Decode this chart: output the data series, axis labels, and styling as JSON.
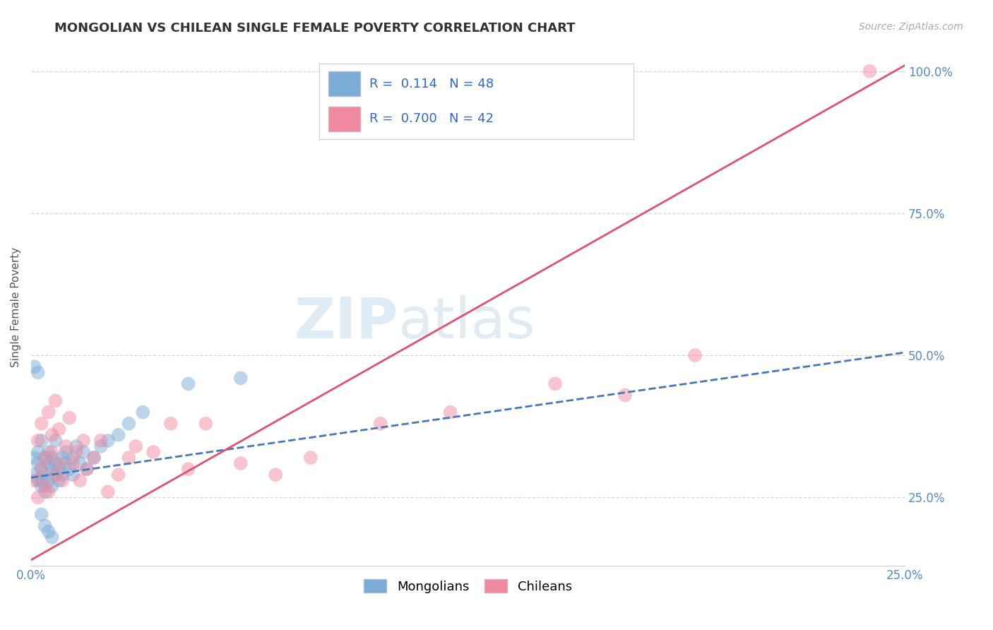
{
  "title": "MONGOLIAN VS CHILEAN SINGLE FEMALE POVERTY CORRELATION CHART",
  "source": "Source: ZipAtlas.com",
  "ylabel": "Single Female Poverty",
  "xlim": [
    0.0,
    0.25
  ],
  "ylim": [
    0.13,
    1.04
  ],
  "xtick_positions": [
    0.0,
    0.05,
    0.1,
    0.15,
    0.2,
    0.25
  ],
  "xtick_labels": [
    "0.0%",
    "",
    "",
    "",
    "",
    "25.0%"
  ],
  "ytick_positions": [
    0.25,
    0.5,
    0.75,
    1.0
  ],
  "ytick_labels": [
    "25.0%",
    "50.0%",
    "75.0%",
    "100.0%"
  ],
  "mongolian_R": 0.114,
  "mongolian_N": 48,
  "chilean_R": 0.7,
  "chilean_N": 42,
  "mongolian_color": "#7aacd6",
  "chilean_color": "#f08aa0",
  "mongolian_line_color": "#4477bb",
  "chilean_line_color": "#e05070",
  "watermark_zip": "ZIP",
  "watermark_atlas": "atlas",
  "legend_mongolians": "Mongolians",
  "legend_chileans": "Chileans",
  "mongolian_x": [
    0.001,
    0.001,
    0.002,
    0.002,
    0.002,
    0.003,
    0.003,
    0.003,
    0.003,
    0.004,
    0.004,
    0.004,
    0.005,
    0.005,
    0.005,
    0.006,
    0.006,
    0.006,
    0.007,
    0.007,
    0.007,
    0.008,
    0.008,
    0.009,
    0.009,
    0.01,
    0.01,
    0.011,
    0.012,
    0.012,
    0.013,
    0.014,
    0.015,
    0.016,
    0.018,
    0.02,
    0.022,
    0.025,
    0.028,
    0.032,
    0.001,
    0.002,
    0.003,
    0.004,
    0.005,
    0.006,
    0.045,
    0.06
  ],
  "mongolian_y": [
    0.32,
    0.29,
    0.31,
    0.28,
    0.33,
    0.3,
    0.28,
    0.35,
    0.27,
    0.32,
    0.29,
    0.26,
    0.31,
    0.28,
    0.33,
    0.3,
    0.27,
    0.32,
    0.29,
    0.31,
    0.35,
    0.28,
    0.3,
    0.29,
    0.32,
    0.31,
    0.33,
    0.3,
    0.29,
    0.32,
    0.34,
    0.31,
    0.33,
    0.3,
    0.32,
    0.34,
    0.35,
    0.36,
    0.38,
    0.4,
    0.48,
    0.47,
    0.22,
    0.2,
    0.19,
    0.18,
    0.45,
    0.46
  ],
  "chilean_x": [
    0.001,
    0.002,
    0.002,
    0.003,
    0.003,
    0.004,
    0.004,
    0.005,
    0.005,
    0.006,
    0.006,
    0.007,
    0.007,
    0.008,
    0.008,
    0.009,
    0.01,
    0.011,
    0.012,
    0.013,
    0.014,
    0.015,
    0.016,
    0.018,
    0.02,
    0.022,
    0.025,
    0.028,
    0.03,
    0.035,
    0.04,
    0.045,
    0.05,
    0.06,
    0.07,
    0.08,
    0.1,
    0.12,
    0.15,
    0.17,
    0.19,
    0.24
  ],
  "chilean_y": [
    0.28,
    0.35,
    0.25,
    0.3,
    0.38,
    0.27,
    0.32,
    0.4,
    0.26,
    0.33,
    0.36,
    0.29,
    0.42,
    0.31,
    0.37,
    0.28,
    0.34,
    0.39,
    0.31,
    0.33,
    0.28,
    0.35,
    0.3,
    0.32,
    0.35,
    0.26,
    0.29,
    0.32,
    0.34,
    0.33,
    0.38,
    0.3,
    0.38,
    0.31,
    0.29,
    0.32,
    0.38,
    0.4,
    0.45,
    0.43,
    0.5,
    1.0
  ],
  "mongolian_trend_x": [
    0.0,
    0.25
  ],
  "mongolian_trend_y": [
    0.285,
    0.505
  ],
  "chilean_trend_x": [
    0.0,
    0.25
  ],
  "chilean_trend_y": [
    0.14,
    1.01
  ]
}
